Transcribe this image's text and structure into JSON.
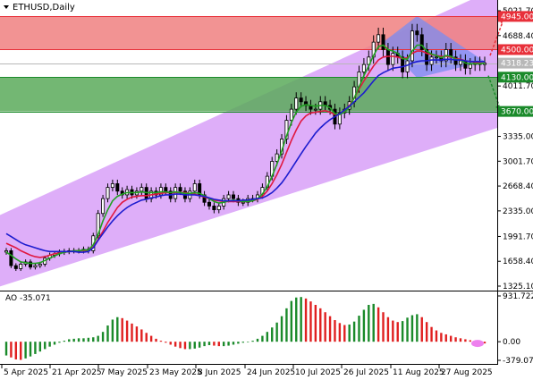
{
  "chart_data": [
    {
      "type": "candlestick",
      "title": "ETHUSD,Daily",
      "x_tick_labels": [
        "5 Apr 2025",
        "21 Apr 2025",
        "7 May 2025",
        "23 May 2025",
        "8 Jun 2025",
        "24 Jun 2025",
        "10 Jul 2025",
        "26 Jul 2025",
        "11 Aug 2025",
        "27 Aug 2025"
      ],
      "y_tick_labels": [
        "5021.70",
        "4688.40",
        "4011.70",
        "3335.00",
        "3001.70",
        "2668.40",
        "2335.00",
        "1991.70",
        "1658.40",
        "1325.10"
      ],
      "ylim": [
        1325.1,
        5021.7
      ],
      "series": [
        {
          "name": "close",
          "values": [
            1800,
            1600,
            1560,
            1620,
            1650,
            1580,
            1600,
            1620,
            1700,
            1740,
            1760,
            1780,
            1790,
            1800,
            1800,
            1800,
            1820,
            1800,
            2000,
            2300,
            2500,
            2650,
            2700,
            2600,
            2550,
            2620,
            2550,
            2600,
            2650,
            2500,
            2600,
            2550,
            2650,
            2600,
            2500,
            2650,
            2600,
            2500,
            2600,
            2700,
            2550,
            2450,
            2400,
            2350,
            2400,
            2500,
            2550,
            2500,
            2450,
            2450,
            2500,
            2500,
            2550,
            2650,
            2800,
            3000,
            3100,
            3300,
            3550,
            3700,
            3850,
            3800,
            3750,
            3700,
            3700,
            3800,
            3750,
            3700,
            3500,
            3650,
            3700,
            3800,
            4000,
            4200,
            4300,
            4400,
            4600,
            4700,
            4500,
            4300,
            4450,
            4400,
            4200,
            4350,
            4750,
            4700,
            4500,
            4300,
            4400,
            4400,
            4350,
            4500,
            4400,
            4300,
            4350,
            4250,
            4300,
            4320,
            4300,
            4318
          ]
        },
        {
          "name": "ma_blue",
          "values": [
            2030,
            1990,
            1950,
            1910,
            1880,
            1860,
            1840,
            1820,
            1800,
            1790,
            1790,
            1790,
            1790,
            1790,
            1790,
            1780,
            1780,
            1790,
            1840,
            1940,
            2030,
            2120,
            2200,
            2270,
            2330,
            2380,
            2420,
            2450,
            2480,
            2490,
            2510,
            2520,
            2540,
            2550,
            2550,
            2560,
            2560,
            2550,
            2550,
            2550,
            2540,
            2530,
            2510,
            2490,
            2480,
            2470,
            2470,
            2470,
            2470,
            2480,
            2480,
            2490,
            2500,
            2510,
            2540,
            2580,
            2640,
            2710,
            2800,
            2900,
            3000,
            3100,
            3200,
            3290,
            3380,
            3450,
            3510,
            3560,
            3600,
            3640,
            3690,
            3740,
            3800,
            3860,
            3920,
            4000,
            4080,
            4150,
            4190,
            4220,
            4250,
            4260,
            4270,
            4290,
            4320,
            4340,
            4350,
            4350,
            4360,
            4360,
            4360,
            4370,
            4370,
            4360,
            4360,
            4350,
            4340,
            4340,
            4340,
            4340
          ]
        },
        {
          "name": "ma_red",
          "values": [
            1900,
            1870,
            1840,
            1800,
            1770,
            1740,
            1720,
            1710,
            1720,
            1740,
            1760,
            1770,
            1780,
            1790,
            1800,
            1800,
            1800,
            1800,
            1850,
            1950,
            2060,
            2180,
            2280,
            2380,
            2450,
            2490,
            2520,
            2530,
            2540,
            2540,
            2550,
            2560,
            2570,
            2580,
            2580,
            2580,
            2580,
            2580,
            2570,
            2560,
            2540,
            2520,
            2500,
            2480,
            2470,
            2460,
            2460,
            2460,
            2460,
            2460,
            2460,
            2470,
            2490,
            2530,
            2600,
            2700,
            2820,
            2960,
            3120,
            3280,
            3420,
            3540,
            3610,
            3650,
            3660,
            3670,
            3680,
            3660,
            3630,
            3640,
            3680,
            3750,
            3850,
            3970,
            4080,
            4180,
            4280,
            4360,
            4400,
            4410,
            4410,
            4400,
            4380,
            4390,
            4450,
            4480,
            4480,
            4450,
            4430,
            4420,
            4410,
            4410,
            4400,
            4380,
            4370,
            4350,
            4340,
            4330,
            4320,
            4320
          ]
        },
        {
          "name": "ma_green",
          "values": [
            1780,
            1740,
            1690,
            1650,
            1640,
            1630,
            1630,
            1640,
            1670,
            1700,
            1730,
            1760,
            1780,
            1790,
            1800,
            1800,
            1810,
            1810,
            1880,
            2020,
            2200,
            2350,
            2470,
            2530,
            2560,
            2580,
            2580,
            2580,
            2590,
            2580,
            2580,
            2580,
            2590,
            2590,
            2580,
            2590,
            2580,
            2570,
            2570,
            2580,
            2570,
            2540,
            2500,
            2460,
            2440,
            2450,
            2470,
            2480,
            2470,
            2460,
            2460,
            2470,
            2500,
            2560,
            2660,
            2800,
            2960,
            3140,
            3340,
            3520,
            3660,
            3740,
            3760,
            3750,
            3740,
            3750,
            3750,
            3720,
            3640,
            3630,
            3660,
            3730,
            3850,
            4000,
            4150,
            4280,
            4420,
            4540,
            4560,
            4500,
            4480,
            4450,
            4380,
            4370,
            4480,
            4560,
            4560,
            4480,
            4440,
            4420,
            4390,
            4420,
            4410,
            4370,
            4360,
            4320,
            4310,
            4310,
            4310,
            4318
          ]
        }
      ],
      "levels": [
        {
          "value": 4945.0,
          "label": "4945.00",
          "color": "#e8303a"
        },
        {
          "value": 4500.0,
          "label": "4500.00",
          "color": "#e8303a"
        },
        {
          "value": 4318.23,
          "label": "4318.23",
          "color": "#b8b8b8"
        },
        {
          "value": 4130.0,
          "label": "4130.00",
          "color": "#1a8a2a"
        },
        {
          "value": 3670.0,
          "label": "3670.00",
          "color": "#1a8a2a"
        }
      ],
      "zones": [
        {
          "name": "resistance",
          "from": 4500.0,
          "to": 4945.0,
          "color": "#f08080"
        },
        {
          "name": "support",
          "from": 3670.0,
          "to": 4130.0,
          "color": "#5aaa5a"
        }
      ],
      "colors": {
        "bull": "#1a8a2a",
        "bear": "#e02020",
        "channel": "#d8a0f8",
        "triangle": "#7a8cf0",
        "ma_blue": "#1c1ccf",
        "ma_red": "#e01840",
        "ma_green": "#20a020"
      }
    },
    {
      "type": "bar",
      "title": "AO -35.071",
      "y_tick_labels": [
        "931.722",
        "0.00",
        "-379.07"
      ],
      "ylim": [
        -379.07,
        931.722
      ],
      "values": [
        -280,
        -320,
        -360,
        -370,
        -340,
        -300,
        -250,
        -200,
        -150,
        -100,
        -60,
        -20,
        20,
        50,
        60,
        70,
        70,
        80,
        90,
        120,
        200,
        330,
        450,
        500,
        480,
        430,
        370,
        310,
        250,
        180,
        120,
        60,
        20,
        -20,
        -60,
        -100,
        -130,
        -150,
        -150,
        -140,
        -120,
        -90,
        -70,
        -80,
        -90,
        -90,
        -80,
        -60,
        -40,
        -20,
        0,
        20,
        60,
        120,
        200,
        290,
        390,
        520,
        680,
        830,
        900,
        910,
        880,
        820,
        750,
        680,
        600,
        520,
        440,
        380,
        340,
        350,
        410,
        530,
        650,
        750,
        770,
        700,
        600,
        500,
        430,
        400,
        420,
        490,
        540,
        560,
        500,
        400,
        300,
        230,
        180,
        150,
        120,
        90,
        70,
        50,
        30,
        10,
        -10,
        -35
      ],
      "colors": {
        "up": "#1a8a2a",
        "down": "#e02020",
        "marker": "#ee80ee"
      }
    }
  ]
}
